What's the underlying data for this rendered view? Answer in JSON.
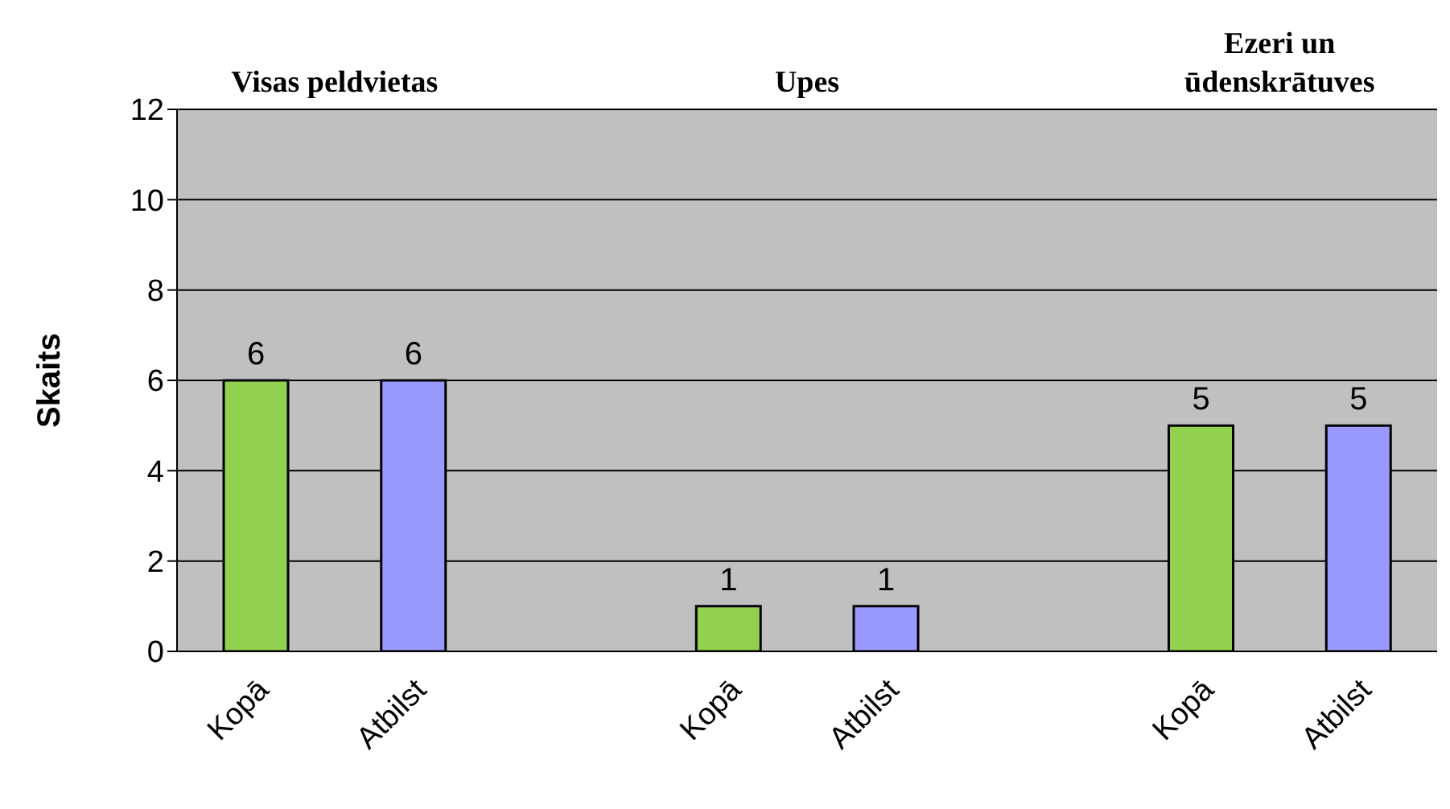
{
  "chart_data": {
    "type": "bar",
    "ylabel": "Skaits",
    "categories": [
      "Kopā",
      "Atbilst",
      null,
      "Kopā",
      "Atbilst",
      null,
      "Kopā",
      "Atbilst"
    ],
    "values": [
      6,
      6,
      null,
      1,
      1,
      null,
      5,
      5
    ],
    "colors": [
      "#92d050",
      "#9999ff",
      null,
      "#92d050",
      "#9999ff",
      null,
      "#92d050",
      "#9999ff"
    ],
    "ylim": [
      0,
      12
    ],
    "yticks": [
      0,
      2,
      4,
      6,
      8,
      10,
      12
    ],
    "grid": "y",
    "data_labels": true,
    "annotations": [
      "Visas peldvietas",
      "Upes",
      "Ezeri un ūdenskrātuves"
    ]
  }
}
